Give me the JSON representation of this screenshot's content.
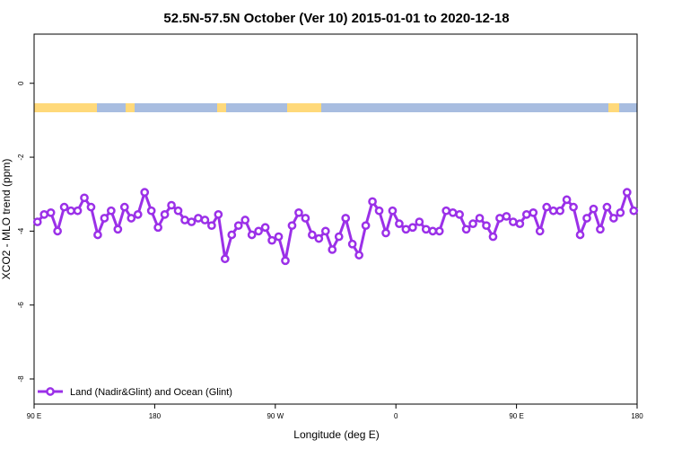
{
  "chart_data": {
    "type": "line",
    "title": "52.5N-57.5N October (Ver 10)   2015-01-01 to 2020-12-18",
    "x_label": "Longitude (deg E)",
    "y_label": "XCO2 - MLO trend (ppm)",
    "legend_position": "bottom-left",
    "xlim": [
      90,
      540
    ],
    "ylim": [
      -8.68,
      1.33
    ],
    "xticks": [
      {
        "value": 90,
        "label": "90 E"
      },
      {
        "value": 180,
        "label": "180"
      },
      {
        "value": 270,
        "label": "90 W"
      },
      {
        "value": 360,
        "label": "0"
      },
      {
        "value": 450,
        "label": "90 E"
      },
      {
        "value": 540,
        "label": "180"
      }
    ],
    "yticks": [
      0,
      -2,
      -4,
      -6,
      -8
    ],
    "x": [
      92.5,
      97.5,
      102.5,
      107.5,
      112.5,
      117.5,
      122.5,
      127.5,
      132.5,
      137.5,
      142.5,
      147.5,
      152.5,
      157.5,
      162.5,
      167.5,
      172.5,
      177.5,
      182.5,
      187.5,
      192.5,
      197.5,
      202.5,
      207.5,
      212.5,
      217.5,
      222.5,
      227.5,
      232.5,
      237.5,
      242.5,
      247.5,
      252.5,
      257.5,
      262.5,
      267.5,
      272.5,
      277.5,
      282.5,
      287.5,
      292.5,
      297.5,
      302.5,
      307.5,
      312.5,
      317.5,
      322.5,
      327.5,
      332.5,
      337.5,
      342.5,
      347.5,
      352.5,
      357.5,
      362.5,
      367.5,
      372.5,
      377.5,
      382.5,
      387.5,
      392.5,
      397.5,
      402.5,
      407.5,
      412.5,
      417.5,
      422.5,
      427.5,
      432.5,
      437.5,
      442.5,
      447.5,
      452.5,
      457.5,
      462.5,
      467.5,
      472.5,
      477.5,
      482.5,
      487.5,
      492.5,
      497.5,
      502.5,
      507.5,
      512.5,
      517.5,
      522.5,
      527.5,
      532.5,
      537.5
    ],
    "series": [
      {
        "name": "Land (Nadir&Glint) and Ocean (Glint)",
        "color": "#9b30e8",
        "values": [
          -3.75,
          -3.55,
          -3.5,
          -4.0,
          -3.35,
          -3.45,
          -3.45,
          -3.1,
          -3.35,
          -4.1,
          -3.65,
          -3.45,
          -3.95,
          -3.35,
          -3.65,
          -3.55,
          -2.95,
          -3.45,
          -3.9,
          -3.55,
          -3.3,
          -3.45,
          -3.7,
          -3.75,
          -3.65,
          -3.7,
          -3.85,
          -3.55,
          -4.75,
          -4.1,
          -3.85,
          -3.7,
          -4.1,
          -4.0,
          -3.9,
          -4.25,
          -4.15,
          -4.8,
          -3.85,
          -3.5,
          -3.65,
          -4.1,
          -4.2,
          -4.0,
          -4.5,
          -4.15,
          -3.65,
          -4.35,
          -4.65,
          -3.85,
          -3.2,
          -3.45,
          -4.05,
          -3.45,
          -3.8,
          -3.95,
          -3.9,
          -3.75,
          -3.95,
          -4.0,
          -4.0,
          -3.45,
          -3.5,
          -3.55,
          -3.95,
          -3.8,
          -3.65,
          -3.85,
          -4.15,
          -3.65,
          -3.6,
          -3.75,
          -3.8,
          -3.55,
          -3.5,
          -4.0,
          -3.35,
          -3.45,
          -3.45,
          -3.15,
          -3.35,
          -4.1,
          -3.65,
          -3.4,
          -3.95,
          -3.35,
          -3.65,
          -3.5,
          -2.95,
          -3.45
        ]
      }
    ]
  }
}
